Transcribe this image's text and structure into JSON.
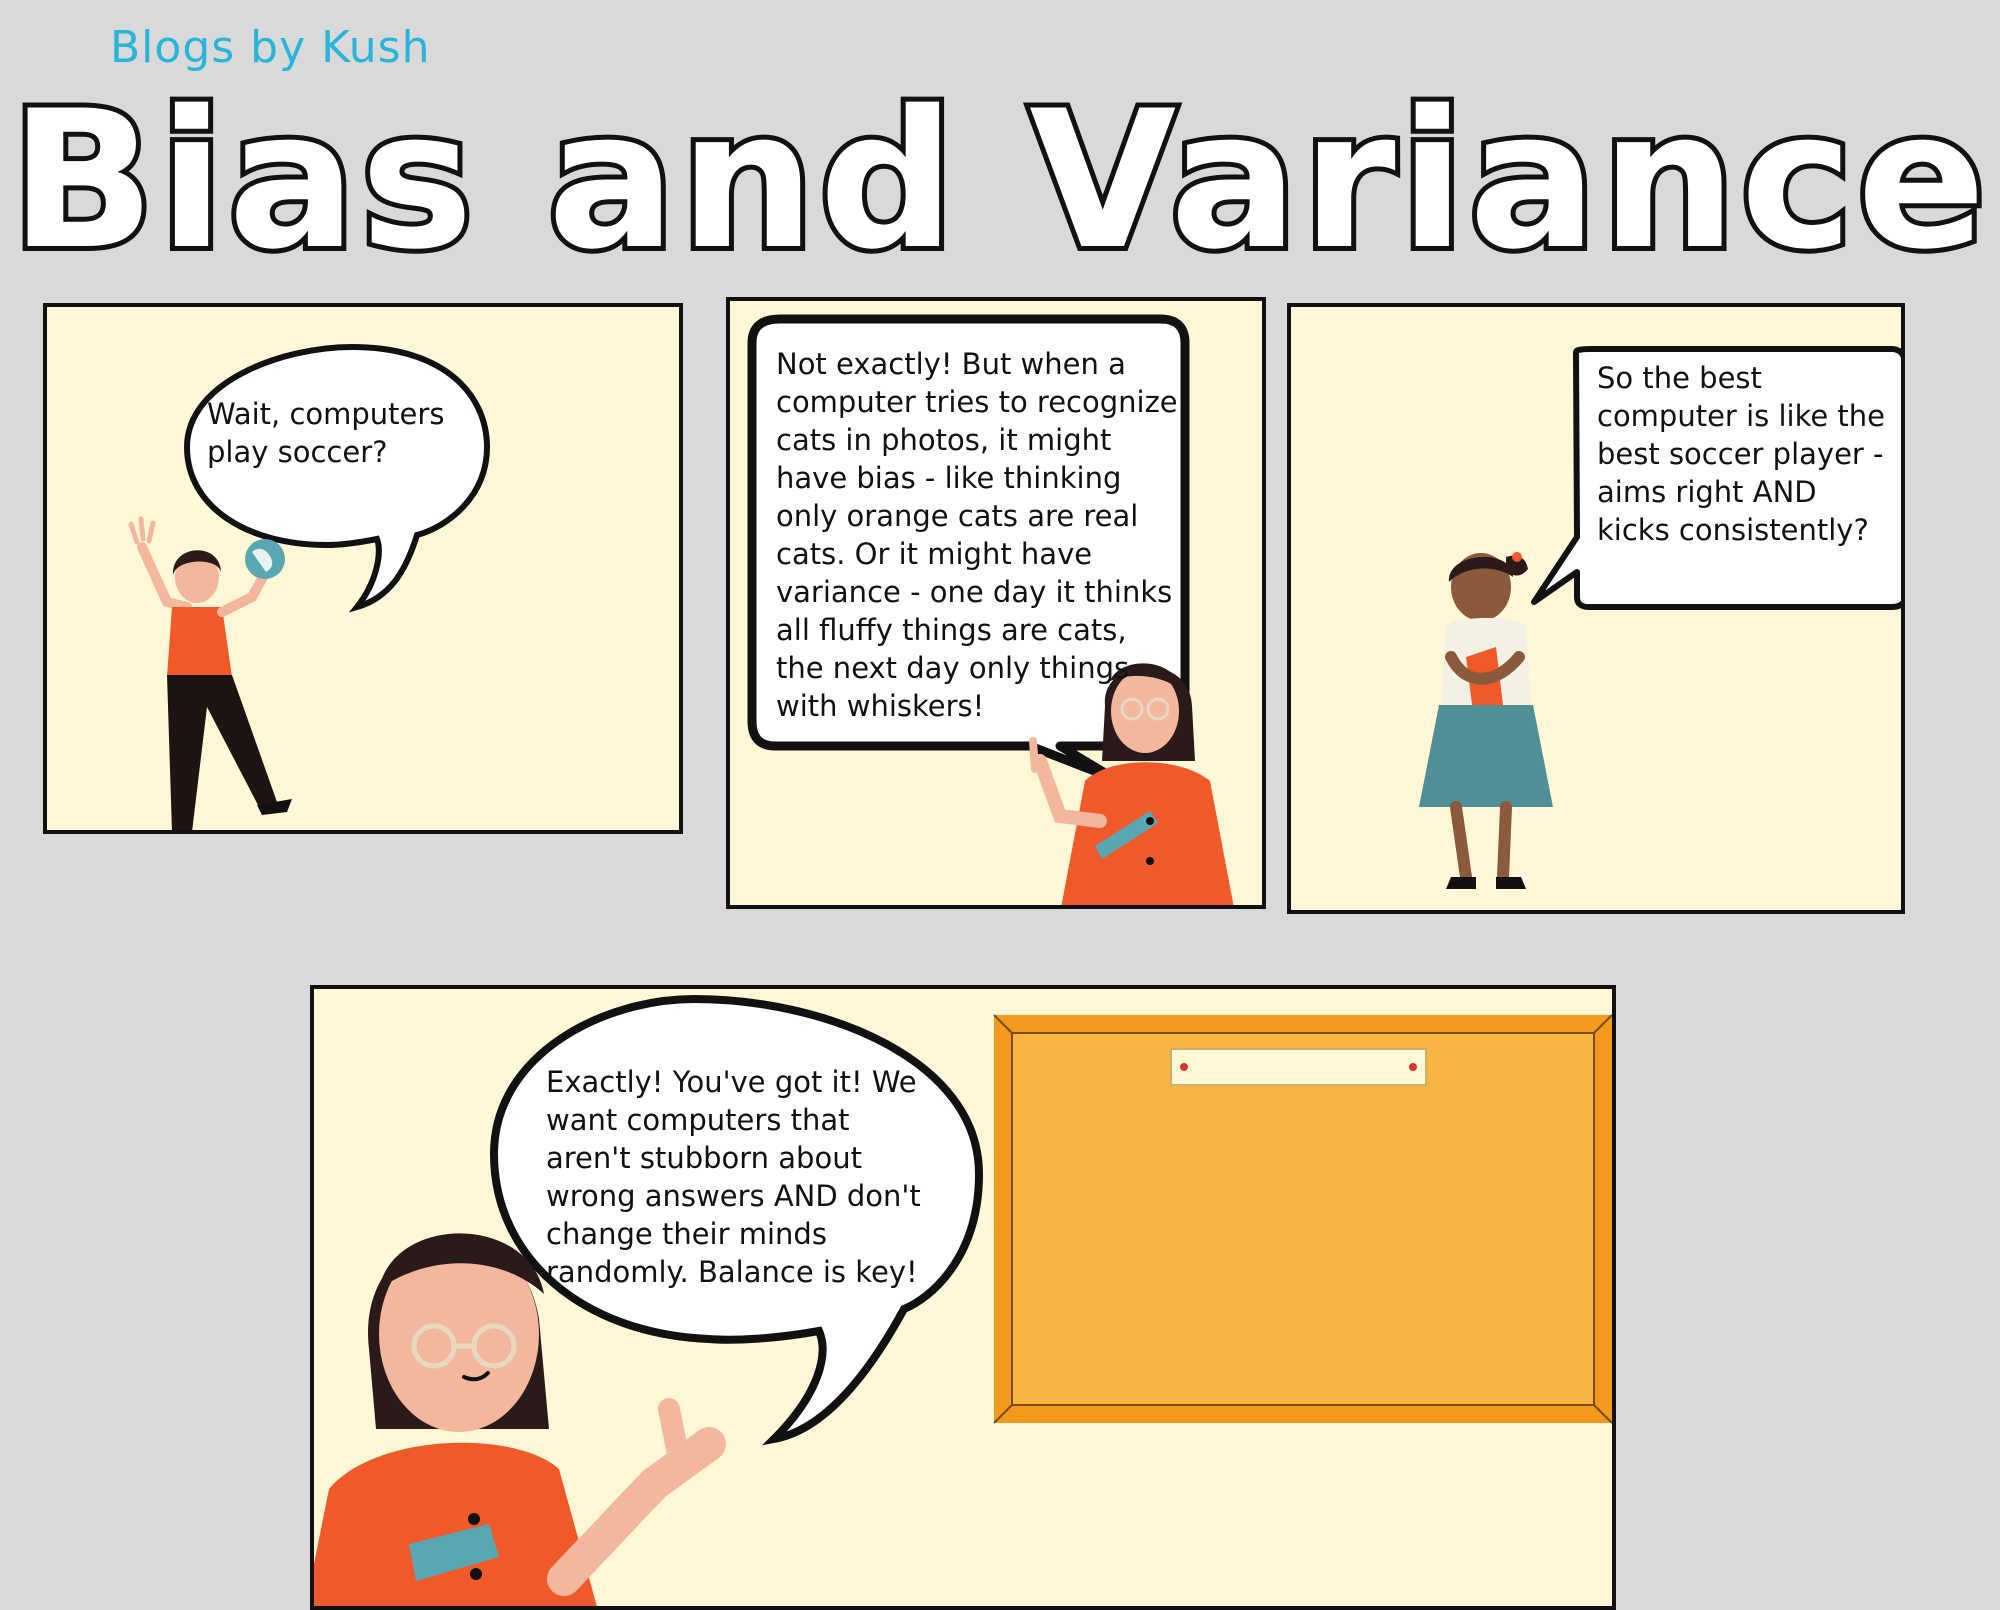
{
  "brand": "Blogs by Kush",
  "title": "Bias and Variance",
  "panels": [
    {
      "speech": " Wait, computers play soccer?"
    },
    {
      "speech": "Not exactly! But when a computer tries to recognize cats in photos, it might have bias - like thinking only orange cats are real cats. Or it might have variance - one day it thinks all fluffy things are cats, the next day only things with whiskers!"
    },
    {
      "speech": " So the best computer is like the best soccer player - aims right AND kicks consistently?"
    },
    {
      "speech": " Exactly! You've got it! We want computers that aren't stubborn about wrong answers AND don't change their minds randomly. Balance is key!"
    }
  ],
  "colors": {
    "background": "#d9d9d9",
    "panel": "#fff7d6",
    "brand": "#29b5d9",
    "shirt": "#f05a2b",
    "board": "#f6b440",
    "board_frame": "#f39a1e"
  }
}
